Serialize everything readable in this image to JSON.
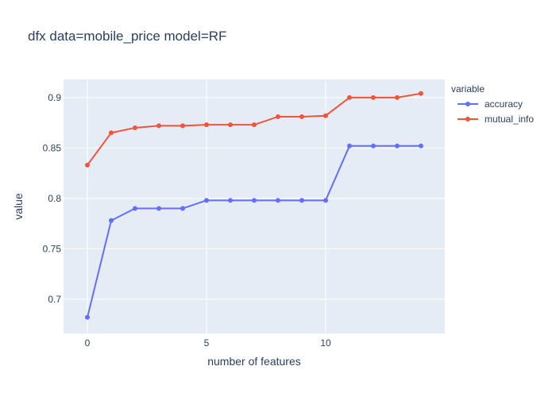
{
  "chart_data": {
    "type": "line",
    "title": "dfx data=mobile_price model=RF",
    "xlabel": "number of features",
    "ylabel": "value",
    "x": [
      0,
      1,
      2,
      3,
      4,
      5,
      6,
      7,
      8,
      9,
      10,
      11,
      12,
      13,
      14
    ],
    "xlim": [
      -1,
      15
    ],
    "ylim": [
      0.666,
      0.918
    ],
    "xticks": [
      0,
      5,
      10
    ],
    "yticks": [
      0.7,
      0.75,
      0.8,
      0.85,
      0.9
    ],
    "ytick_labels": [
      "0.7",
      "0.75",
      "0.8",
      "0.85",
      "0.9"
    ],
    "grid": true,
    "legend": {
      "title": "variable",
      "placement": "top-right outside"
    },
    "series": [
      {
        "name": "accuracy",
        "color": "#636efa",
        "values": [
          0.682,
          0.778,
          0.79,
          0.79,
          0.79,
          0.798,
          0.798,
          0.798,
          0.798,
          0.798,
          0.798,
          0.852,
          0.852,
          0.852,
          0.852
        ]
      },
      {
        "name": "mutual_info",
        "color": "#ef553b",
        "values": [
          0.833,
          0.865,
          0.87,
          0.872,
          0.872,
          0.873,
          0.873,
          0.873,
          0.881,
          0.881,
          0.882,
          0.9,
          0.9,
          0.9,
          0.904
        ]
      }
    ]
  },
  "colors": {
    "plot_background": "#e5ecf6",
    "gridline": "#ffffff",
    "text": "#2a3f5f"
  }
}
